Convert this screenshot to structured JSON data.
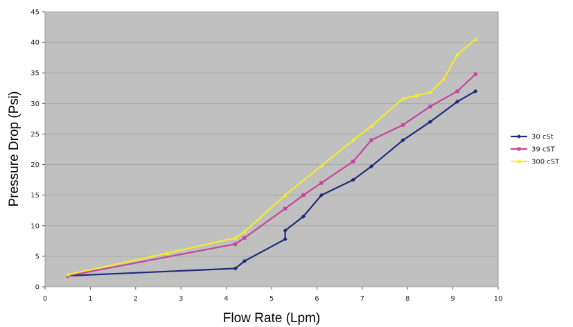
{
  "chart_data": {
    "type": "line",
    "title": "",
    "xlabel": "Flow Rate (Lpm)",
    "ylabel": "Pressure Drop (Psi)",
    "xlim": [
      0,
      10
    ],
    "ylim": [
      0,
      45
    ],
    "xticks": [
      "0",
      "1",
      "2",
      "3",
      "4",
      "5",
      "6",
      "7",
      "8",
      "9",
      "10"
    ],
    "yticks": [
      "0",
      "5",
      "10",
      "15",
      "20",
      "25",
      "30",
      "35",
      "40",
      "45"
    ],
    "grid": true,
    "legend_position": "right",
    "plot_background": "#c0c0c0",
    "series": [
      {
        "name": "30 cSt",
        "color": "#1f2a7a",
        "marker": "diamond",
        "points": [
          [
            0.5,
            1.8
          ],
          [
            4.2,
            3.0
          ],
          [
            4.4,
            4.2
          ],
          [
            5.3,
            7.8
          ],
          [
            5.3,
            9.2
          ],
          [
            5.7,
            11.5
          ],
          [
            6.1,
            15.0
          ],
          [
            6.8,
            17.5
          ],
          [
            7.2,
            19.7
          ],
          [
            7.9,
            24.0
          ],
          [
            8.5,
            27.0
          ],
          [
            9.1,
            30.3
          ],
          [
            9.5,
            32.0
          ]
        ]
      },
      {
        "name": "39 cST",
        "color": "#c4449a",
        "marker": "square",
        "points": [
          [
            0.5,
            1.8
          ],
          [
            4.2,
            7.0
          ],
          [
            4.4,
            8.0
          ],
          [
            5.3,
            12.8
          ],
          [
            5.7,
            15.0
          ],
          [
            6.1,
            17.0
          ],
          [
            6.8,
            20.5
          ],
          [
            7.2,
            24.0
          ],
          [
            7.9,
            26.5
          ],
          [
            8.5,
            29.5
          ],
          [
            9.1,
            32.0
          ],
          [
            9.5,
            34.8
          ]
        ]
      },
      {
        "name": "300 cST",
        "color": "#f2ee2a",
        "marker": "triangle",
        "points": [
          [
            0.5,
            2.0
          ],
          [
            2.7,
            5.5
          ],
          [
            4.2,
            8.0
          ],
          [
            4.4,
            9.0
          ],
          [
            5.3,
            15.0
          ],
          [
            6.1,
            19.8
          ],
          [
            6.8,
            24.0
          ],
          [
            7.2,
            26.3
          ],
          [
            7.9,
            30.8
          ],
          [
            8.2,
            31.3
          ],
          [
            8.5,
            31.8
          ],
          [
            8.8,
            34.0
          ],
          [
            9.1,
            38.0
          ],
          [
            9.5,
            40.5
          ]
        ]
      }
    ]
  }
}
